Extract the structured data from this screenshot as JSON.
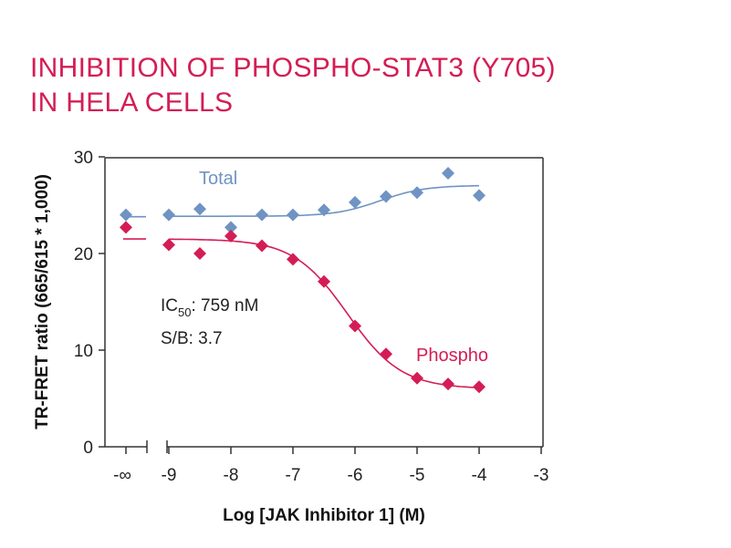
{
  "title": {
    "line1": "INHIBITION OF PHOSPHO-STAT3 (Y705)",
    "line2": "IN HELA CELLS"
  },
  "chart_data": {
    "type": "scatter",
    "xlabel": "Log [JAK Inhibitor 1] (M)",
    "ylabel": "TR-FRET ratio (665/615 * 1,000)",
    "xlim": [
      -9,
      -3
    ],
    "ylim": [
      0,
      30
    ],
    "x_ticks": [
      "-∞",
      "-9",
      "-8",
      "-7",
      "-6",
      "-5",
      "-4",
      "-3"
    ],
    "y_ticks": [
      "0",
      "10",
      "20",
      "30"
    ],
    "axis_break": "between -∞ and -9",
    "grid": false,
    "series": [
      {
        "name": "Total",
        "color": "#6f93c3",
        "marker": "diamond",
        "baseline": {
          "x": "-∞",
          "y": 24.0,
          "curve_y": 23.8
        },
        "points": [
          {
            "x": -9.0,
            "y": 24.0
          },
          {
            "x": -8.5,
            "y": 24.6
          },
          {
            "x": -8.0,
            "y": 22.7
          },
          {
            "x": -7.5,
            "y": 24.0
          },
          {
            "x": -7.0,
            "y": 24.0
          },
          {
            "x": -6.5,
            "y": 24.5
          },
          {
            "x": -6.0,
            "y": 25.3
          },
          {
            "x": -5.5,
            "y": 25.9
          },
          {
            "x": -5.0,
            "y": 26.3
          },
          {
            "x": -4.5,
            "y": 28.3
          },
          {
            "x": -4.0,
            "y": 26.0
          }
        ],
        "fit": {
          "bottom": 23.85,
          "top": 27.05,
          "log_ec50": -5.6,
          "hill": 1.2
        }
      },
      {
        "name": "Phospho",
        "color": "#d41d55",
        "marker": "diamond",
        "baseline": {
          "x": "-∞",
          "y": 22.7,
          "curve_y": 21.5
        },
        "points": [
          {
            "x": -9.0,
            "y": 20.9
          },
          {
            "x": -8.5,
            "y": 20.0
          },
          {
            "x": -8.0,
            "y": 21.8
          },
          {
            "x": -7.5,
            "y": 20.8
          },
          {
            "x": -7.0,
            "y": 19.4
          },
          {
            "x": -6.5,
            "y": 17.1
          },
          {
            "x": -6.0,
            "y": 12.5
          },
          {
            "x": -5.5,
            "y": 9.6
          },
          {
            "x": -5.0,
            "y": 7.1
          },
          {
            "x": -4.5,
            "y": 6.5
          },
          {
            "x": -4.0,
            "y": 6.2
          }
        ],
        "fit": {
          "top": 21.5,
          "bottom": 6.0,
          "log_ec50": -6.12,
          "hill": -1.0
        }
      }
    ],
    "annotations": {
      "ic50_prefix": "IC",
      "ic50_sub": "50",
      "ic50_value": ": 759 nM",
      "sb": "S/B: 3.7"
    }
  }
}
